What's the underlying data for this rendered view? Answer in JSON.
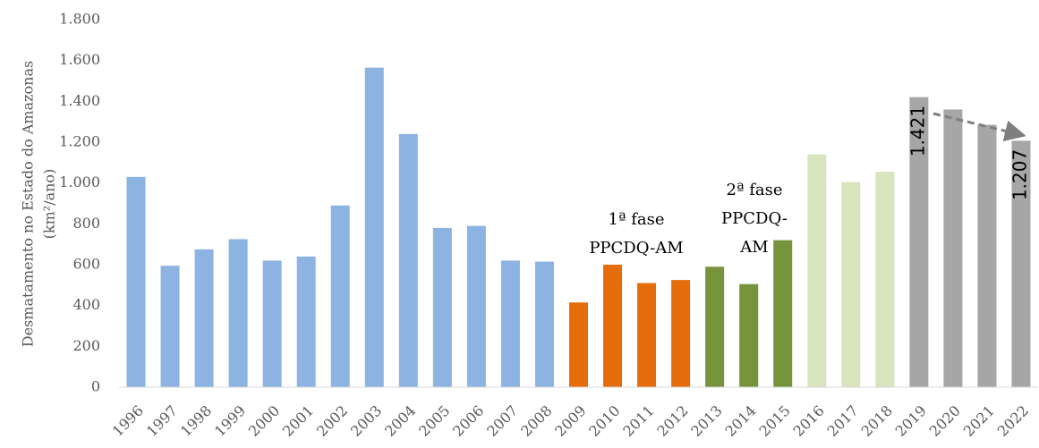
{
  "chart_data": {
    "type": "bar",
    "y_label": [
      "Desmatamento no Estado do Amazonas",
      "(km²/ano)"
    ],
    "categories": [
      "1996",
      "1997",
      "1998",
      "1999",
      "2000",
      "2001",
      "2002",
      "2003",
      "2004",
      "2005",
      "2006",
      "2007",
      "2008",
      "2009",
      "2010",
      "2011",
      "2012",
      "2013",
      "2014",
      "2015",
      "2016",
      "2017",
      "2018",
      "2019",
      "2020",
      "2021",
      "2022"
    ],
    "values": [
      1030,
      595,
      675,
      725,
      620,
      640,
      890,
      1565,
      1240,
      780,
      790,
      620,
      615,
      415,
      600,
      510,
      525,
      590,
      505,
      720,
      1140,
      1005,
      1055,
      1421,
      1360,
      1285,
      1207
    ],
    "value_labels": [
      null,
      null,
      null,
      null,
      null,
      null,
      null,
      null,
      null,
      null,
      null,
      null,
      null,
      null,
      null,
      null,
      null,
      null,
      null,
      null,
      null,
      null,
      null,
      "1.421",
      null,
      null,
      "1.207"
    ],
    "colors": [
      "#8db3e2",
      "#8db3e2",
      "#8db3e2",
      "#8db3e2",
      "#8db3e2",
      "#8db3e2",
      "#8db3e2",
      "#8db3e2",
      "#8db3e2",
      "#8db3e2",
      "#8db3e2",
      "#8db3e2",
      "#8db3e2",
      "#e46c0a",
      "#e46c0a",
      "#e46c0a",
      "#e46c0a",
      "#77933c",
      "#77933c",
      "#77933c",
      "#d7e4bd",
      "#d7e4bd",
      "#d7e4bd",
      "#a6a6a6",
      "#a6a6a6",
      "#a6a6a6",
      "#a6a6a6"
    ],
    "ylim": [
      0,
      1800
    ],
    "yticks": [
      0,
      200,
      400,
      600,
      800,
      {
        "value": 1000,
        "label": "1.000"
      },
      {
        "value": 1200,
        "label": "1.200"
      },
      {
        "value": 1400,
        "label": "1.400"
      },
      {
        "value": 1600,
        "label": "1.600"
      },
      {
        "value": 1800,
        "label": "1.800"
      }
    ],
    "grid": false,
    "annotations": [
      [
        "1ª fase",
        "PPCDQ-AM"
      ],
      [
        "2ª fase",
        "PPCDQ-",
        "AM"
      ]
    ]
  }
}
